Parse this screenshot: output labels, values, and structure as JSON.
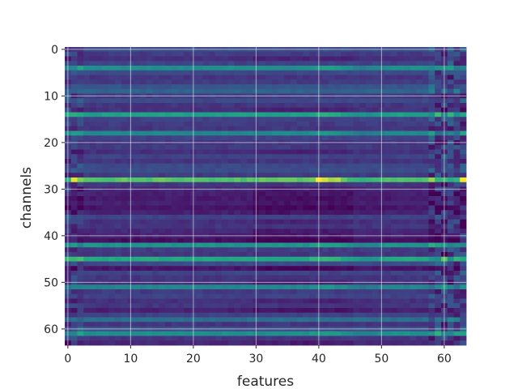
{
  "chart_data": {
    "type": "heatmap",
    "title": "",
    "xlabel": "features",
    "ylabel": "channels",
    "x_range": [
      0,
      63
    ],
    "y_range": [
      0,
      63
    ],
    "y_inverted": true,
    "colormap": "viridis",
    "grid": true,
    "x_ticks": [
      "0",
      "10",
      "20",
      "30",
      "40",
      "50",
      "60"
    ],
    "y_ticks": [
      "0",
      "10",
      "20",
      "30",
      "40",
      "50",
      "60"
    ],
    "row_base_values": [
      0.3,
      0.22,
      0.18,
      0.25,
      0.62,
      0.28,
      0.2,
      0.22,
      0.33,
      0.4,
      0.22,
      0.28,
      0.2,
      0.18,
      0.7,
      0.25,
      0.22,
      0.2,
      0.58,
      0.25,
      0.2,
      0.22,
      0.18,
      0.25,
      0.2,
      0.28,
      0.3,
      0.22,
      0.9,
      0.2,
      0.15,
      0.12,
      0.1,
      0.12,
      0.08,
      0.12,
      0.25,
      0.18,
      0.2,
      0.15,
      0.12,
      0.05,
      0.65,
      0.22,
      0.2,
      0.75,
      0.28,
      0.08,
      0.25,
      0.2,
      0.18,
      0.58,
      0.22,
      0.25,
      0.18,
      0.2,
      0.12,
      0.25,
      0.45,
      0.2,
      0.3,
      0.62,
      0.2,
      0.15
    ],
    "colors": {
      "background": "#ffffff",
      "grid": "#ffffff",
      "text": "#262626"
    }
  }
}
